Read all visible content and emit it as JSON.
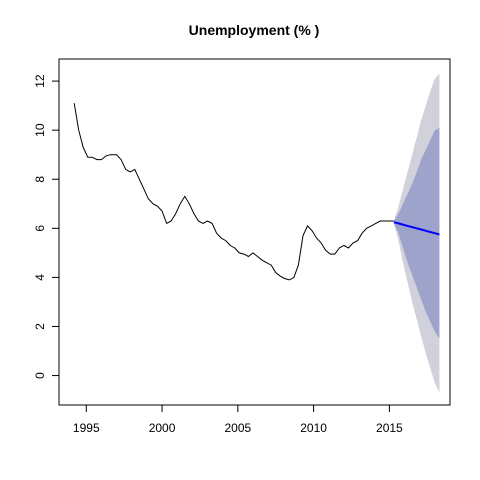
{
  "chart_data": {
    "type": "line",
    "title": "Unemployment (% )",
    "xlabel": "",
    "ylabel": "",
    "xlim": [
      1993.2,
      2019.0
    ],
    "ylim": [
      -1.2,
      12.9
    ],
    "x_ticks": [
      1995,
      2000,
      2005,
      2010,
      2015
    ],
    "x_tick_labels": [
      "1995",
      "2000",
      "2005",
      "2010",
      "2015"
    ],
    "y_ticks": [
      0,
      2,
      4,
      6,
      8,
      10,
      12
    ],
    "y_tick_labels": [
      "0",
      "2",
      "4",
      "6",
      "8",
      "10",
      "12"
    ],
    "grid": false,
    "legend": "none",
    "colors": {
      "history": "#000000",
      "forecast": "#0000ff",
      "band_95": "#d1d1db",
      "band_80": "#9ea3cc"
    },
    "series": [
      {
        "role": "history",
        "x": [
          1994.2,
          1994.5,
          1994.8,
          1995.1,
          1995.4,
          1995.7,
          1996.0,
          1996.3,
          1996.6,
          1997.0,
          1997.3,
          1997.6,
          1997.9,
          1998.2,
          1998.5,
          1998.8,
          1999.1,
          1999.4,
          1999.7,
          2000.0,
          2000.3,
          2000.6,
          2000.9,
          2001.2,
          2001.5,
          2001.8,
          2002.1,
          2002.4,
          2002.7,
          2003.0,
          2003.3,
          2003.6,
          2003.9,
          2004.2,
          2004.5,
          2004.8,
          2005.1,
          2005.4,
          2005.7,
          2006.0,
          2006.3,
          2006.6,
          2006.9,
          2007.2,
          2007.5,
          2007.8,
          2008.1,
          2008.4,
          2008.7,
          2009.0,
          2009.3,
          2009.6,
          2009.9,
          2010.2,
          2010.5,
          2010.8,
          2011.1,
          2011.4,
          2011.7,
          2012.0,
          2012.3,
          2012.6,
          2012.9,
          2013.2,
          2013.5,
          2013.8,
          2014.1,
          2014.4,
          2014.7,
          2015.0,
          2015.3
        ],
        "y": [
          11.1,
          10.0,
          9.3,
          8.9,
          8.9,
          8.8,
          8.8,
          8.95,
          9.0,
          9.0,
          8.8,
          8.4,
          8.3,
          8.4,
          8.0,
          7.6,
          7.2,
          7.0,
          6.9,
          6.7,
          6.2,
          6.3,
          6.6,
          7.0,
          7.3,
          7.0,
          6.6,
          6.3,
          6.2,
          6.3,
          6.2,
          5.8,
          5.6,
          5.5,
          5.3,
          5.2,
          5.0,
          4.95,
          4.85,
          5.0,
          4.85,
          4.7,
          4.6,
          4.5,
          4.2,
          4.05,
          3.95,
          3.9,
          4.0,
          4.5,
          5.7,
          6.1,
          5.9,
          5.6,
          5.4,
          5.1,
          4.95,
          4.95,
          5.2,
          5.3,
          5.2,
          5.4,
          5.5,
          5.8,
          6.0,
          6.1,
          6.2,
          6.3,
          6.3,
          6.3,
          6.3
        ]
      },
      {
        "role": "forecast",
        "x": [
          2015.3,
          2015.6,
          2015.9,
          2016.2,
          2016.5,
          2016.8,
          2017.1,
          2017.4,
          2017.7,
          2018.0,
          2018.3
        ],
        "y": [
          6.25,
          6.2,
          6.15,
          6.1,
          6.05,
          6.0,
          5.95,
          5.9,
          5.85,
          5.8,
          5.75
        ],
        "lo80": [
          6.2,
          5.8,
          5.2,
          4.6,
          4.1,
          3.6,
          3.1,
          2.6,
          2.2,
          1.8,
          1.5
        ],
        "hi80": [
          6.3,
          6.6,
          7.0,
          7.4,
          7.8,
          8.3,
          8.8,
          9.2,
          9.6,
          10.0,
          10.1
        ],
        "lo95": [
          6.2,
          5.5,
          4.6,
          3.8,
          3.0,
          2.3,
          1.6,
          0.9,
          0.3,
          -0.3,
          -0.7
        ],
        "hi95": [
          6.3,
          6.9,
          7.6,
          8.3,
          9.0,
          9.7,
          10.4,
          11.0,
          11.6,
          12.1,
          12.3
        ]
      }
    ]
  }
}
